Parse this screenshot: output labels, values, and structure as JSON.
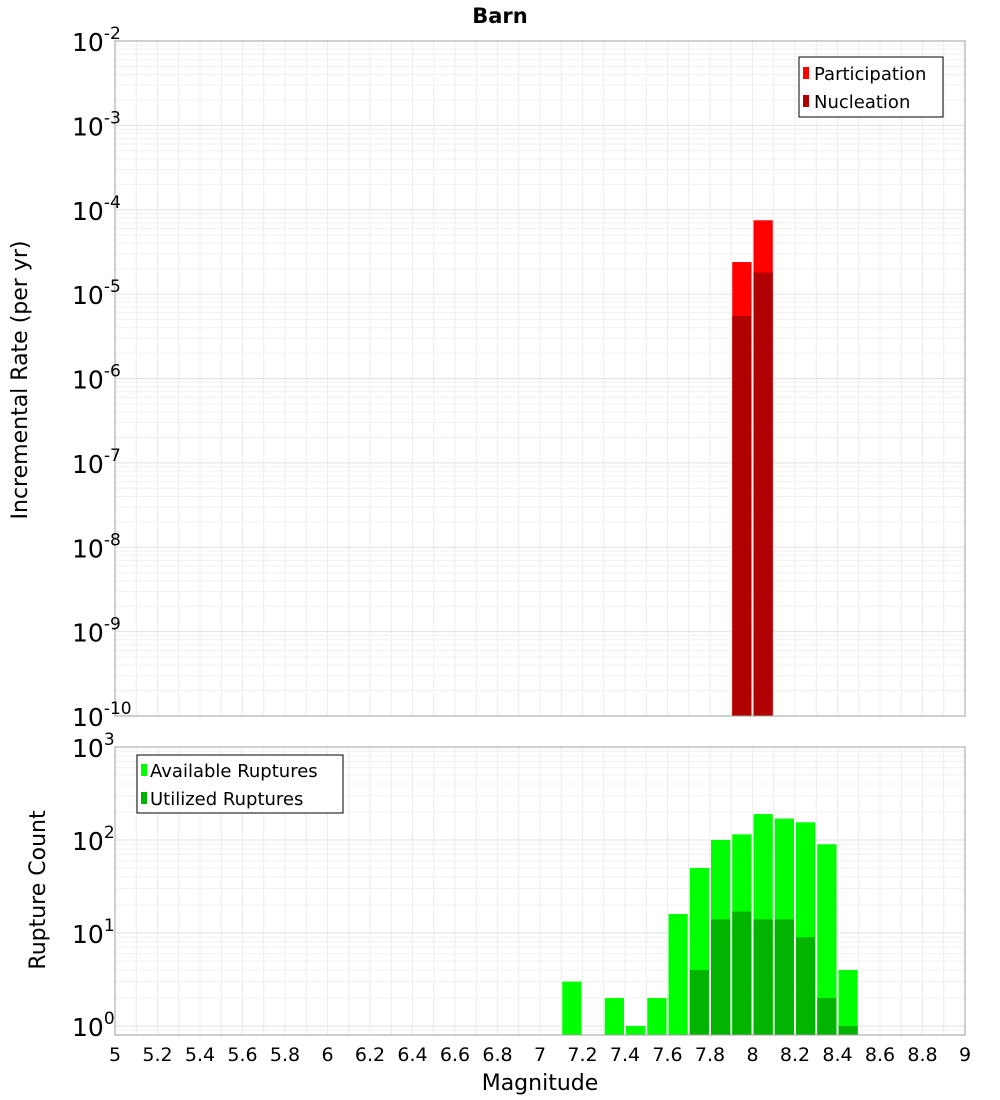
{
  "chart_data": [
    {
      "type": "bar",
      "title": "Barn",
      "ylabel": "Incremental Rate (per yr)",
      "xlabel": "",
      "xlim": [
        5,
        9
      ],
      "ylim": [
        1e-10,
        0.01
      ],
      "yscale": "log",
      "bin_width": 0.1,
      "grid": true,
      "legend_position": "top-right",
      "yticks": [
        {
          "base": "10",
          "exp": "-10",
          "value": 1e-10
        },
        {
          "base": "10",
          "exp": "-9",
          "value": 1e-09
        },
        {
          "base": "10",
          "exp": "-8",
          "value": 1e-08
        },
        {
          "base": "10",
          "exp": "-7",
          "value": 1e-07
        },
        {
          "base": "10",
          "exp": "-6",
          "value": 1e-06
        },
        {
          "base": "10",
          "exp": "-5",
          "value": 1e-05
        },
        {
          "base": "10",
          "exp": "-4",
          "value": 0.0001
        },
        {
          "base": "10",
          "exp": "-3",
          "value": 0.001
        },
        {
          "base": "10",
          "exp": "-2",
          "value": 0.01
        }
      ],
      "series": [
        {
          "name": "Participation",
          "color": "#ff0000",
          "x": [
            7.95,
            8.05
          ],
          "values": [
            2.4e-05,
            7.5e-05
          ]
        },
        {
          "name": "Nucleation",
          "color": "#b00000",
          "x": [
            7.95,
            8.05
          ],
          "values": [
            5.5e-06,
            1.8e-05
          ]
        }
      ]
    },
    {
      "type": "bar",
      "title": "",
      "ylabel": "Rupture Count",
      "xlabel": "Magnitude",
      "xlim": [
        5,
        9
      ],
      "ylim": [
        0.8,
        1000
      ],
      "yscale": "log",
      "bin_width": 0.1,
      "grid": true,
      "legend_position": "top-left",
      "xticks": [
        "5",
        "5.2",
        "5.4",
        "5.6",
        "5.8",
        "6",
        "6.2",
        "6.4",
        "6.6",
        "6.8",
        "7",
        "7.2",
        "7.4",
        "7.6",
        "7.8",
        "8",
        "8.2",
        "8.4",
        "8.6",
        "8.8",
        "9"
      ],
      "yticks": [
        {
          "base": "10",
          "exp": "0",
          "value": 1
        },
        {
          "base": "10",
          "exp": "1",
          "value": 10
        },
        {
          "base": "10",
          "exp": "2",
          "value": 100
        },
        {
          "base": "10",
          "exp": "3",
          "value": 1000
        }
      ],
      "series": [
        {
          "name": "Available Ruptures",
          "color": "#00ff00",
          "x": [
            7.15,
            7.35,
            7.45,
            7.55,
            7.65,
            7.75,
            7.85,
            7.95,
            8.05,
            8.15,
            8.25,
            8.35,
            8.45
          ],
          "values": [
            3,
            2,
            1,
            2,
            16,
            50,
            100,
            115,
            190,
            170,
            155,
            90,
            4
          ]
        },
        {
          "name": "Utilized Ruptures",
          "color": "#00b400",
          "x": [
            7.75,
            7.85,
            7.95,
            8.05,
            8.15,
            8.25,
            8.35,
            8.45
          ],
          "values": [
            4,
            14,
            17,
            14,
            14,
            9,
            2,
            1
          ]
        }
      ]
    }
  ]
}
